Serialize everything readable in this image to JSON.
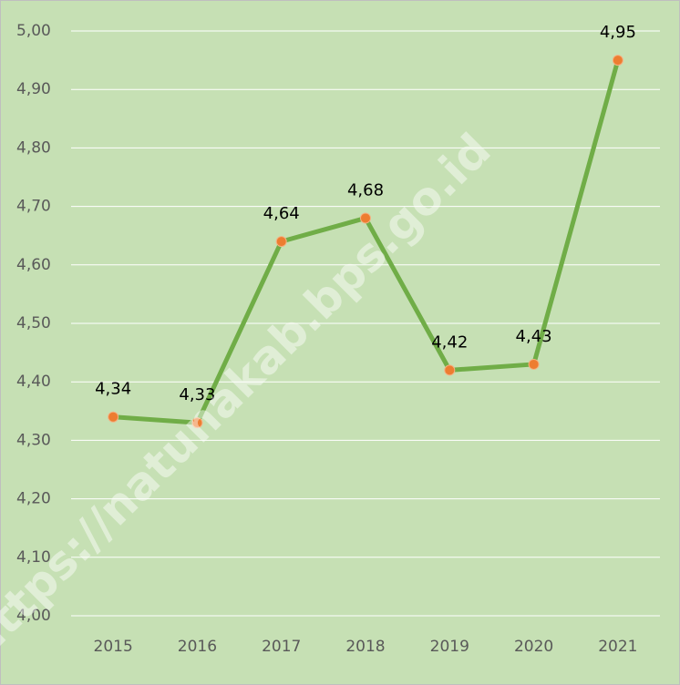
{
  "chart_data": {
    "type": "line",
    "categories": [
      "2015",
      "2016",
      "2017",
      "2018",
      "2019",
      "2020",
      "2021"
    ],
    "series": [
      {
        "name": "Series",
        "color": "#70ad47",
        "marker_color": "#ed7d31",
        "values": [
          4.34,
          4.33,
          4.64,
          4.68,
          4.42,
          4.43,
          4.95
        ],
        "value_labels": [
          "4,34",
          "4,33",
          "4,64",
          "4,68",
          "4,42",
          "4,43",
          "4,95"
        ]
      }
    ],
    "ylim": [
      4.0,
      5.0
    ],
    "yticks": [
      {
        "value": 4.0,
        "label": "4,00"
      },
      {
        "value": 4.1,
        "label": "4,10"
      },
      {
        "value": 4.2,
        "label": "4,20"
      },
      {
        "value": 4.3,
        "label": "4,30"
      },
      {
        "value": 4.4,
        "label": "4,40"
      },
      {
        "value": 4.5,
        "label": "4,50"
      },
      {
        "value": 4.6,
        "label": "4,60"
      },
      {
        "value": 4.7,
        "label": "4,70"
      },
      {
        "value": 4.8,
        "label": "4,80"
      },
      {
        "value": 4.9,
        "label": "4,90"
      },
      {
        "value": 5.0,
        "label": "5,00"
      }
    ],
    "grid": true,
    "watermark": "https://natunakab.bps.go.id"
  }
}
